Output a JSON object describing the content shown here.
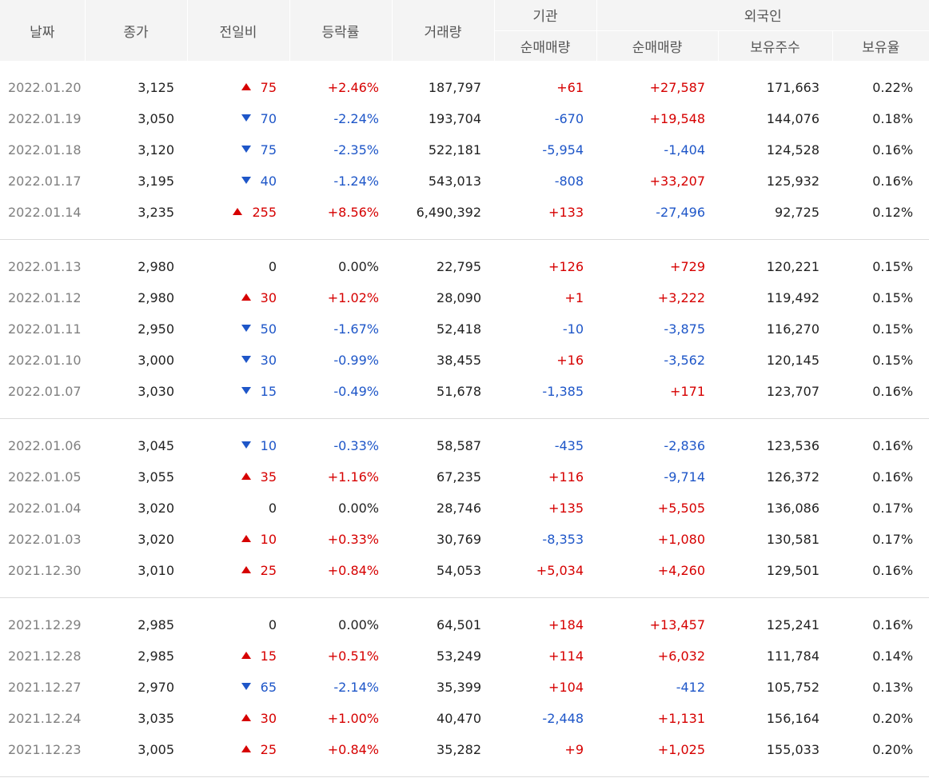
{
  "header": {
    "date": "날짜",
    "close": "종가",
    "diff": "전일비",
    "rate": "등락률",
    "volume": "거래량",
    "institution_group": "기관",
    "institution_net": "순매매량",
    "foreign_group": "외국인",
    "foreign_net": "순매매량",
    "foreign_hold": "보유주수",
    "foreign_ratio": "보유율"
  },
  "colors": {
    "up": "#d60000",
    "down": "#1e56c8",
    "header_bg": "#f4f4f4"
  },
  "groups": [
    [
      {
        "date": "2022.01.20",
        "close": "3,125",
        "dir": "up",
        "diff": "75",
        "rate": "+2.46%",
        "volume": "187,797",
        "inst": "+61",
        "inst_dir": "up",
        "for": "+27,587",
        "for_dir": "up",
        "hold": "171,663",
        "ratio": "0.22%"
      },
      {
        "date": "2022.01.19",
        "close": "3,050",
        "dir": "down",
        "diff": "70",
        "rate": "-2.24%",
        "volume": "193,704",
        "inst": "-670",
        "inst_dir": "down",
        "for": "+19,548",
        "for_dir": "up",
        "hold": "144,076",
        "ratio": "0.18%"
      },
      {
        "date": "2022.01.18",
        "close": "3,120",
        "dir": "down",
        "diff": "75",
        "rate": "-2.35%",
        "volume": "522,181",
        "inst": "-5,954",
        "inst_dir": "down",
        "for": "-1,404",
        "for_dir": "down",
        "hold": "124,528",
        "ratio": "0.16%"
      },
      {
        "date": "2022.01.17",
        "close": "3,195",
        "dir": "down",
        "diff": "40",
        "rate": "-1.24%",
        "volume": "543,013",
        "inst": "-808",
        "inst_dir": "down",
        "for": "+33,207",
        "for_dir": "up",
        "hold": "125,932",
        "ratio": "0.16%"
      },
      {
        "date": "2022.01.14",
        "close": "3,235",
        "dir": "up",
        "diff": "255",
        "rate": "+8.56%",
        "volume": "6,490,392",
        "inst": "+133",
        "inst_dir": "up",
        "for": "-27,496",
        "for_dir": "down",
        "hold": "92,725",
        "ratio": "0.12%"
      }
    ],
    [
      {
        "date": "2022.01.13",
        "close": "2,980",
        "dir": "flat",
        "diff": "0",
        "rate": "0.00%",
        "volume": "22,795",
        "inst": "+126",
        "inst_dir": "up",
        "for": "+729",
        "for_dir": "up",
        "hold": "120,221",
        "ratio": "0.15%"
      },
      {
        "date": "2022.01.12",
        "close": "2,980",
        "dir": "up",
        "diff": "30",
        "rate": "+1.02%",
        "volume": "28,090",
        "inst": "+1",
        "inst_dir": "up",
        "for": "+3,222",
        "for_dir": "up",
        "hold": "119,492",
        "ratio": "0.15%"
      },
      {
        "date": "2022.01.11",
        "close": "2,950",
        "dir": "down",
        "diff": "50",
        "rate": "-1.67%",
        "volume": "52,418",
        "inst": "-10",
        "inst_dir": "down",
        "for": "-3,875",
        "for_dir": "down",
        "hold": "116,270",
        "ratio": "0.15%"
      },
      {
        "date": "2022.01.10",
        "close": "3,000",
        "dir": "down",
        "diff": "30",
        "rate": "-0.99%",
        "volume": "38,455",
        "inst": "+16",
        "inst_dir": "up",
        "for": "-3,562",
        "for_dir": "down",
        "hold": "120,145",
        "ratio": "0.15%"
      },
      {
        "date": "2022.01.07",
        "close": "3,030",
        "dir": "down",
        "diff": "15",
        "rate": "-0.49%",
        "volume": "51,678",
        "inst": "-1,385",
        "inst_dir": "down",
        "for": "+171",
        "for_dir": "up",
        "hold": "123,707",
        "ratio": "0.16%"
      }
    ],
    [
      {
        "date": "2022.01.06",
        "close": "3,045",
        "dir": "down",
        "diff": "10",
        "rate": "-0.33%",
        "volume": "58,587",
        "inst": "-435",
        "inst_dir": "down",
        "for": "-2,836",
        "for_dir": "down",
        "hold": "123,536",
        "ratio": "0.16%"
      },
      {
        "date": "2022.01.05",
        "close": "3,055",
        "dir": "up",
        "diff": "35",
        "rate": "+1.16%",
        "volume": "67,235",
        "inst": "+116",
        "inst_dir": "up",
        "for": "-9,714",
        "for_dir": "down",
        "hold": "126,372",
        "ratio": "0.16%"
      },
      {
        "date": "2022.01.04",
        "close": "3,020",
        "dir": "flat",
        "diff": "0",
        "rate": "0.00%",
        "volume": "28,746",
        "inst": "+135",
        "inst_dir": "up",
        "for": "+5,505",
        "for_dir": "up",
        "hold": "136,086",
        "ratio": "0.17%"
      },
      {
        "date": "2022.01.03",
        "close": "3,020",
        "dir": "up",
        "diff": "10",
        "rate": "+0.33%",
        "volume": "30,769",
        "inst": "-8,353",
        "inst_dir": "down",
        "for": "+1,080",
        "for_dir": "up",
        "hold": "130,581",
        "ratio": "0.17%"
      },
      {
        "date": "2021.12.30",
        "close": "3,010",
        "dir": "up",
        "diff": "25",
        "rate": "+0.84%",
        "volume": "54,053",
        "inst": "+5,034",
        "inst_dir": "up",
        "for": "+4,260",
        "for_dir": "up",
        "hold": "129,501",
        "ratio": "0.16%"
      }
    ],
    [
      {
        "date": "2021.12.29",
        "close": "2,985",
        "dir": "flat",
        "diff": "0",
        "rate": "0.00%",
        "volume": "64,501",
        "inst": "+184",
        "inst_dir": "up",
        "for": "+13,457",
        "for_dir": "up",
        "hold": "125,241",
        "ratio": "0.16%"
      },
      {
        "date": "2021.12.28",
        "close": "2,985",
        "dir": "up",
        "diff": "15",
        "rate": "+0.51%",
        "volume": "53,249",
        "inst": "+114",
        "inst_dir": "up",
        "for": "+6,032",
        "for_dir": "up",
        "hold": "111,784",
        "ratio": "0.14%"
      },
      {
        "date": "2021.12.27",
        "close": "2,970",
        "dir": "down",
        "diff": "65",
        "rate": "-2.14%",
        "volume": "35,399",
        "inst": "+104",
        "inst_dir": "up",
        "for": "-412",
        "for_dir": "down",
        "hold": "105,752",
        "ratio": "0.13%"
      },
      {
        "date": "2021.12.24",
        "close": "3,035",
        "dir": "up",
        "diff": "30",
        "rate": "+1.00%",
        "volume": "40,470",
        "inst": "-2,448",
        "inst_dir": "down",
        "for": "+1,131",
        "for_dir": "up",
        "hold": "156,164",
        "ratio": "0.20%"
      },
      {
        "date": "2021.12.23",
        "close": "3,005",
        "dir": "up",
        "diff": "25",
        "rate": "+0.84%",
        "volume": "35,282",
        "inst": "+9",
        "inst_dir": "up",
        "for": "+1,025",
        "for_dir": "up",
        "hold": "155,033",
        "ratio": "0.20%"
      }
    ]
  ]
}
